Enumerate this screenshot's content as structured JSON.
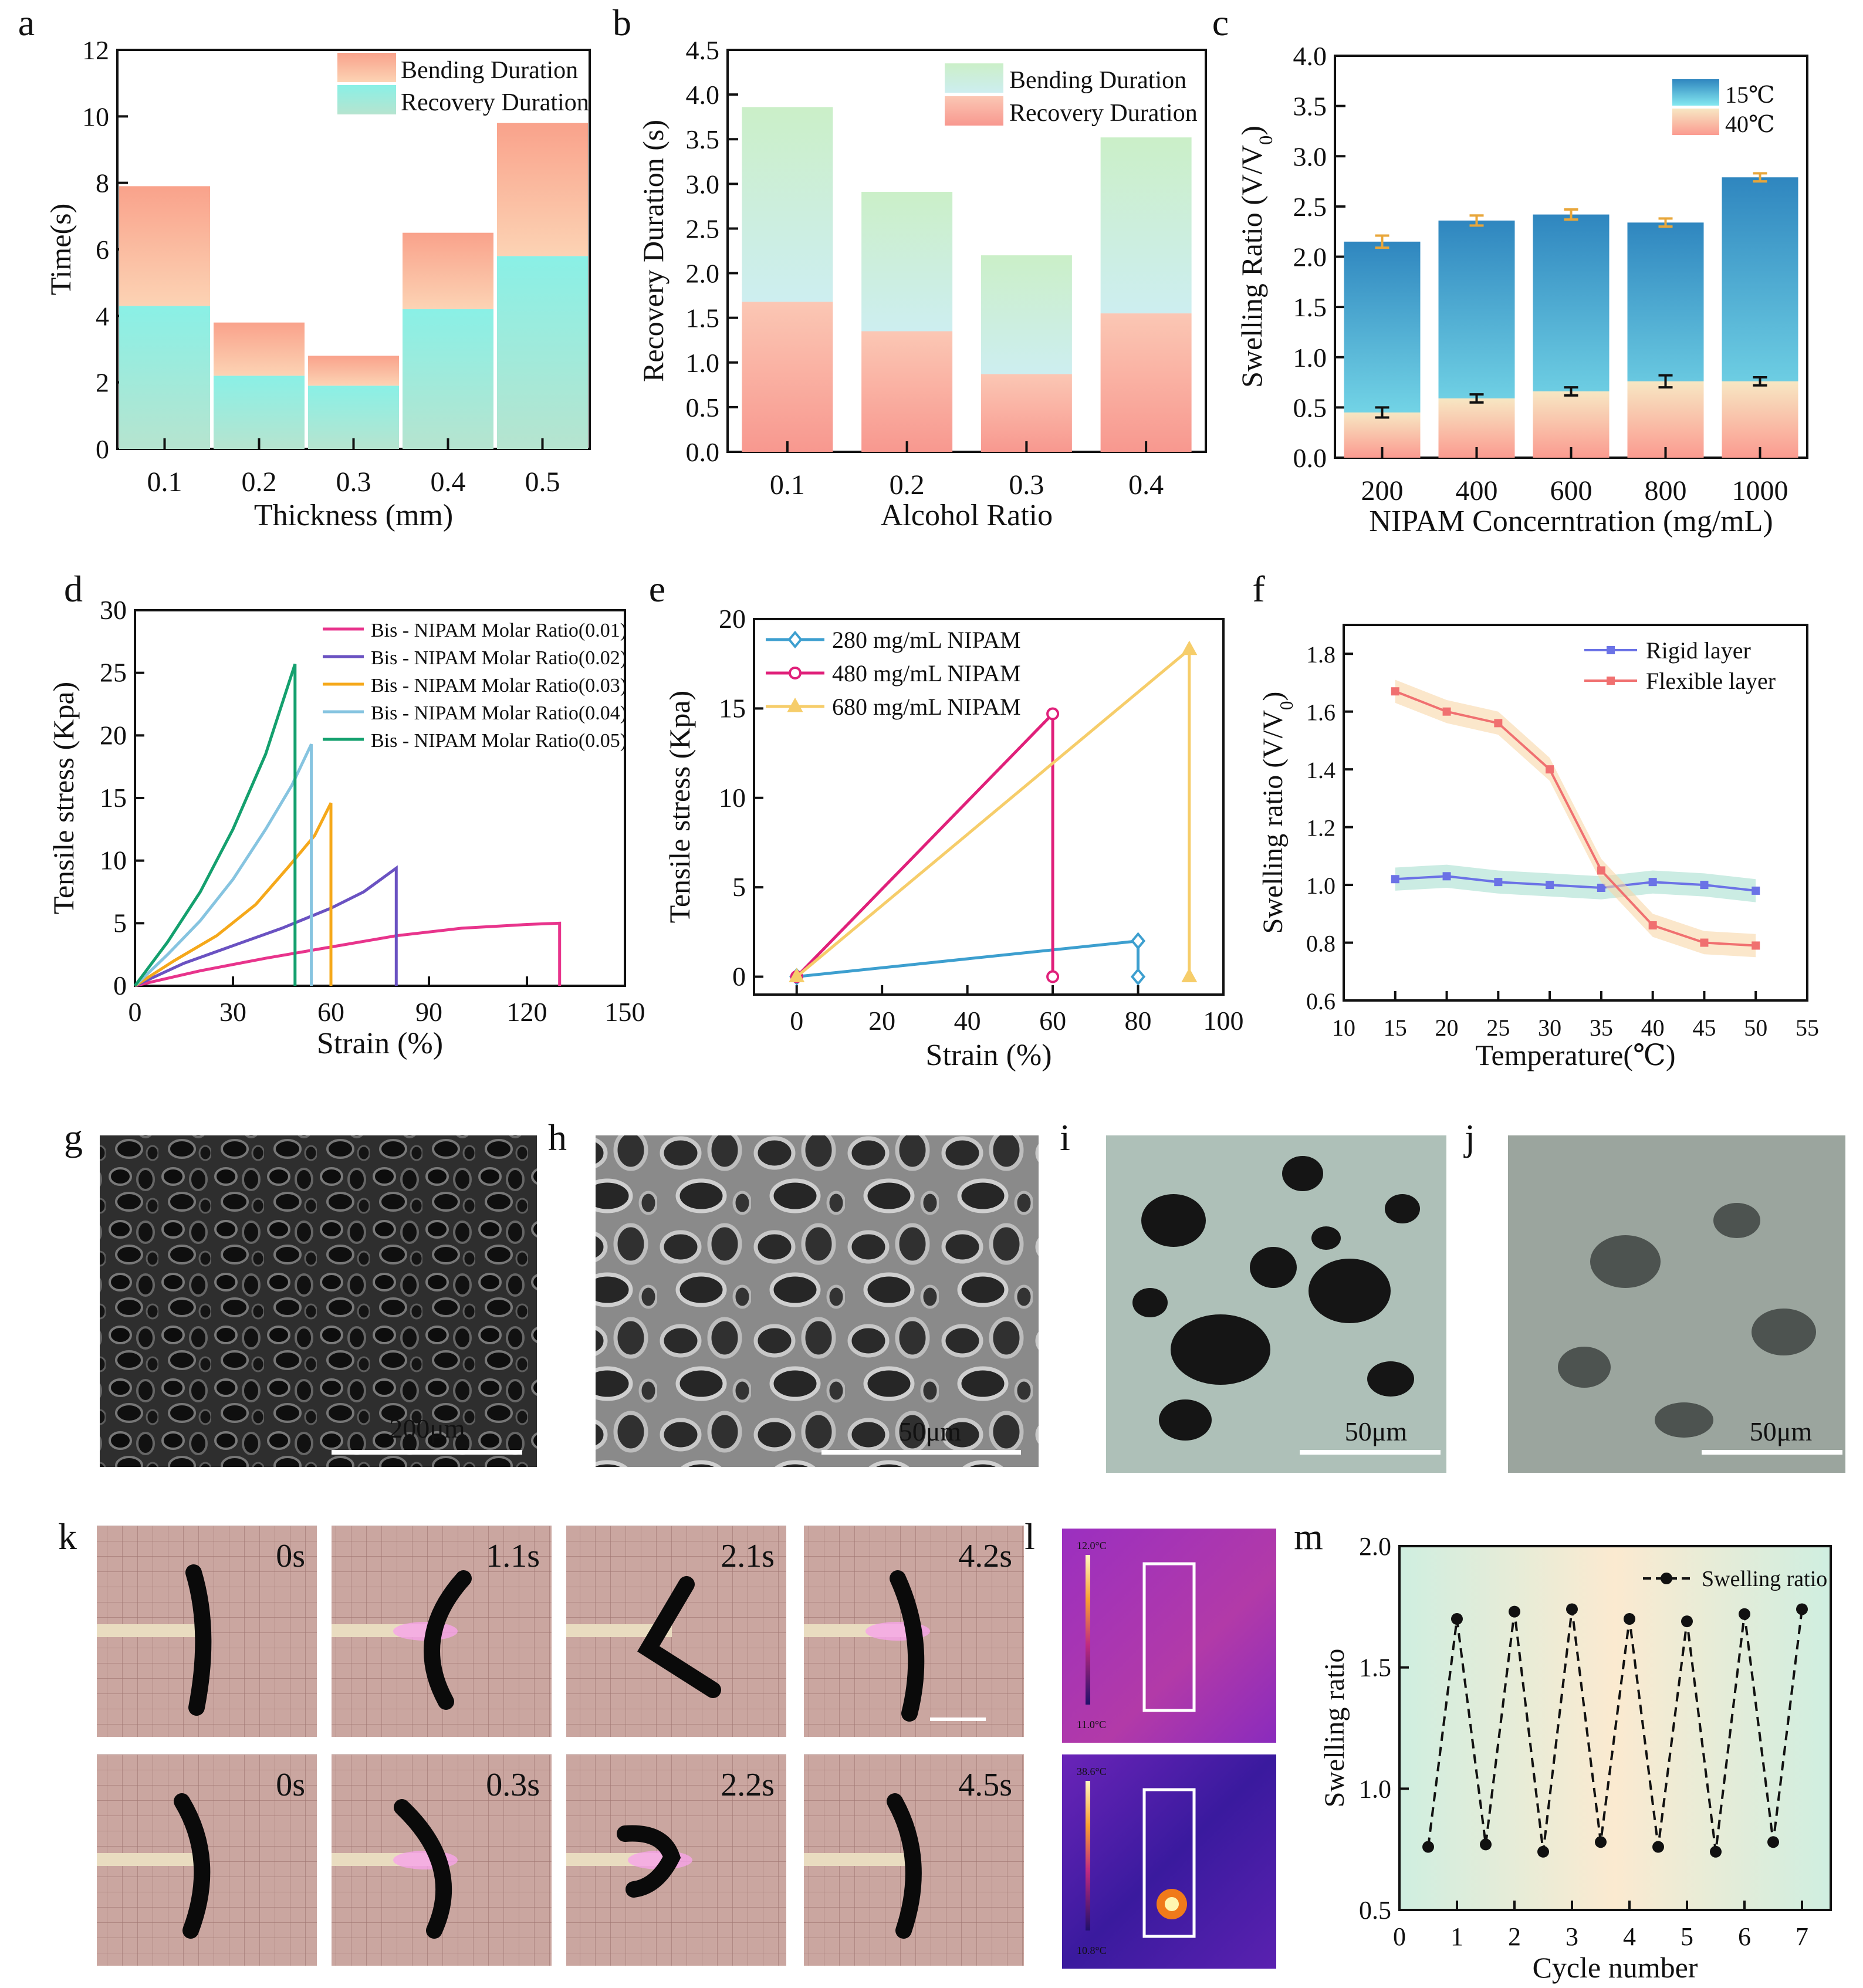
{
  "panel_letters": [
    "a",
    "b",
    "c",
    "d",
    "e",
    "f",
    "g",
    "h",
    "i",
    "j",
    "k",
    "l",
    "m"
  ],
  "colors": {
    "salmon": "#f9a98f",
    "cyan": "#8ee8dd",
    "green": "#cdeecd",
    "pink": "#fbb7a8",
    "blue": "#3d9fcf",
    "pinkline": "#e8348c",
    "purple": "#6a52c2",
    "orange": "#f5a81a",
    "lightblue": "#86c4e0",
    "teal": "#14a06e",
    "red": "#f07070",
    "indigo": "#6b72e6"
  },
  "chart_data": [
    {
      "id": "a",
      "type": "bar",
      "stacked": true,
      "categories": [
        "0.1",
        "0.2",
        "0.3",
        "0.4",
        "0.5"
      ],
      "series": [
        {
          "name": "Recovery Duration",
          "values": [
            4.3,
            2.2,
            1.9,
            4.2,
            5.8
          ]
        },
        {
          "name": "Bending Duration",
          "values": [
            3.6,
            1.6,
            0.9,
            2.3,
            4.0
          ]
        }
      ],
      "legend": [
        "Bending Duration",
        "Recovery Duration"
      ],
      "xlabel": "Thickness (mm)",
      "ylabel": "Time(s)",
      "ylim": [
        0,
        12
      ],
      "yticks": [
        "0",
        "2",
        "4",
        "6",
        "8",
        "10",
        "12"
      ]
    },
    {
      "id": "b",
      "type": "bar",
      "stacked": true,
      "categories": [
        "0.1",
        "0.2",
        "0.3",
        "0.4"
      ],
      "series": [
        {
          "name": "Recovery Duration",
          "values": [
            1.68,
            1.35,
            0.87,
            1.55
          ]
        },
        {
          "name": "Bending Duration",
          "values": [
            2.18,
            1.56,
            1.33,
            1.97
          ]
        }
      ],
      "legend": [
        "Bending Duration",
        "Recovery Duration"
      ],
      "xlabel": "Alcohol Ratio",
      "ylabel": "Recovery Duration (s)",
      "ylim": [
        0,
        4.5
      ],
      "yticks": [
        "0.0",
        "0.5",
        "1.0",
        "1.5",
        "2.0",
        "2.5",
        "3.0",
        "3.5",
        "4.0",
        "4.5"
      ]
    },
    {
      "id": "c",
      "type": "bar",
      "overlaid": true,
      "categories": [
        "200",
        "400",
        "600",
        "800",
        "1000"
      ],
      "series": [
        {
          "name": "15℃",
          "values": [
            2.15,
            2.36,
            2.42,
            2.34,
            2.79
          ],
          "errors": [
            0.06,
            0.05,
            0.05,
            0.04,
            0.04
          ]
        },
        {
          "name": "40℃",
          "values": [
            0.45,
            0.59,
            0.66,
            0.76,
            0.76
          ],
          "errors": [
            0.05,
            0.04,
            0.04,
            0.06,
            0.04
          ]
        }
      ],
      "legend": [
        "15℃",
        "40℃"
      ],
      "xlabel": "NIPAM Concerntration (mg/mL)",
      "ylabel": "Swelling Ratio (V/V",
      "ylabel_sub": "0",
      "ylabel_end": ")",
      "ylim": [
        0,
        4.0
      ],
      "yticks": [
        "0.0",
        "0.5",
        "1.0",
        "1.5",
        "2.0",
        "2.5",
        "3.0",
        "3.5",
        "4.0"
      ]
    },
    {
      "id": "d",
      "type": "line",
      "series": [
        {
          "name": "Bis - NIPAM Molar Ratio(0.01)",
          "x": [
            0,
            20,
            40,
            60,
            80,
            100,
            120,
            130,
            130
          ],
          "y": [
            0,
            1.2,
            2.2,
            3.1,
            4.0,
            4.6,
            4.9,
            5.0,
            0
          ]
        },
        {
          "name": "Bis - NIPAM Molar Ratio(0.02)",
          "x": [
            0,
            15,
            30,
            45,
            60,
            70,
            80,
            80
          ],
          "y": [
            0,
            1.8,
            3.2,
            4.6,
            6.2,
            7.5,
            9.4,
            0
          ]
        },
        {
          "name": "Bis - NIPAM Molar Ratio(0.03)",
          "x": [
            0,
            12,
            25,
            37,
            47,
            55,
            60,
            60
          ],
          "y": [
            0,
            2.0,
            4.0,
            6.5,
            9.5,
            12.0,
            14.6,
            0
          ]
        },
        {
          "name": "Bis - NIPAM Molar Ratio(0.04)",
          "x": [
            0,
            10,
            20,
            30,
            40,
            48,
            54,
            54
          ],
          "y": [
            0,
            2.5,
            5.2,
            8.5,
            12.5,
            16.0,
            19.3,
            0
          ]
        },
        {
          "name": "Bis - NIPAM Molar Ratio(0.05)",
          "x": [
            0,
            10,
            20,
            30,
            40,
            49,
            49
          ],
          "y": [
            0,
            3.5,
            7.5,
            12.5,
            18.5,
            25.7,
            0
          ]
        }
      ],
      "xlabel": "Strain (%)",
      "ylabel": "Tensile stress (Kpa)",
      "xlim": [
        0,
        150
      ],
      "ylim": [
        0,
        30
      ],
      "xticks": [
        "0",
        "30",
        "60",
        "90",
        "120",
        "150"
      ],
      "yticks": [
        "0",
        "5",
        "10",
        "15",
        "20",
        "25",
        "30"
      ]
    },
    {
      "id": "e",
      "type": "line",
      "series": [
        {
          "name": "280 mg/mL NIPAM",
          "x": [
            0,
            80,
            80
          ],
          "y": [
            0,
            2.0,
            0
          ]
        },
        {
          "name": "480 mg/mL NIPAM",
          "x": [
            0,
            60,
            60
          ],
          "y": [
            0,
            14.7,
            0
          ]
        },
        {
          "name": "680 mg/mL NIPAM",
          "x": [
            0,
            92,
            92
          ],
          "y": [
            0,
            18.3,
            0
          ]
        }
      ],
      "xlabel": "Strain (%)",
      "ylabel": "Tensile stress (Kpa)",
      "xlim": [
        -10,
        100
      ],
      "ylim": [
        -1,
        20
      ],
      "xticks": [
        "0",
        "20",
        "40",
        "60",
        "80",
        "100"
      ],
      "yticks": [
        "0",
        "5",
        "10",
        "15",
        "20"
      ]
    },
    {
      "id": "f",
      "type": "line",
      "series": [
        {
          "name": "Rigid layer",
          "x": [
            15,
            20,
            25,
            30,
            35,
            40,
            45,
            50
          ],
          "y": [
            1.02,
            1.03,
            1.01,
            1.0,
            0.99,
            1.01,
            1.0,
            0.98
          ]
        },
        {
          "name": "Flexible layer",
          "x": [
            15,
            20,
            25,
            30,
            35,
            40,
            45,
            50
          ],
          "y": [
            1.67,
            1.6,
            1.56,
            1.4,
            1.05,
            0.86,
            0.8,
            0.79
          ]
        }
      ],
      "xlabel": "Temperature(℃)",
      "ylabel": "Swelling ratio (V/V",
      "ylabel_sub": "0",
      "ylabel_end": ")",
      "xlim": [
        10,
        55
      ],
      "ylim": [
        0.6,
        1.9
      ],
      "xticks": [
        "10",
        "15",
        "20",
        "25",
        "30",
        "35",
        "40",
        "45",
        "50",
        "55"
      ],
      "yticks": [
        "0.6",
        "0.8",
        "1.0",
        "1.2",
        "1.4",
        "1.6",
        "1.8"
      ]
    },
    {
      "id": "m",
      "type": "line",
      "series": [
        {
          "name": "Swelling ratio",
          "x": [
            0.5,
            1,
            1.5,
            2,
            2.5,
            3,
            3.5,
            4,
            4.5,
            5,
            5.5,
            6,
            6.5,
            7
          ],
          "y": [
            0.76,
            1.7,
            0.77,
            1.73,
            0.74,
            1.74,
            0.78,
            1.7,
            0.76,
            1.69,
            0.74,
            1.72,
            0.78,
            1.74
          ]
        }
      ],
      "xlabel": "Cycle number",
      "ylabel": "Swelling ratio",
      "xlim": [
        0,
        7.5
      ],
      "ylim": [
        0.5,
        2.0
      ],
      "xticks": [
        "0",
        "1",
        "2",
        "3",
        "4",
        "5",
        "6",
        "7"
      ],
      "yticks": [
        "0.5",
        "1.0",
        "1.5",
        "2.0"
      ]
    }
  ],
  "images": {
    "g": {
      "scale_bar": "200μm",
      "kind": "sem"
    },
    "h": {
      "scale_bar": "50μm",
      "kind": "sem"
    },
    "i": {
      "scale_bar": "50μm",
      "kind": "micrograph"
    },
    "j": {
      "scale_bar": "50μm",
      "kind": "micrograph"
    }
  },
  "k": {
    "row1_times": [
      "0s",
      "1.1s",
      "2.1s",
      "4.2s"
    ],
    "row2_times": [
      "0s",
      "0.3s",
      "2.2s",
      "4.5s"
    ]
  },
  "l": {
    "top": {
      "max": "12.0°C",
      "min": "11.0°C"
    },
    "bottom": {
      "max": "38.6°C",
      "min": "10.8°C"
    }
  }
}
